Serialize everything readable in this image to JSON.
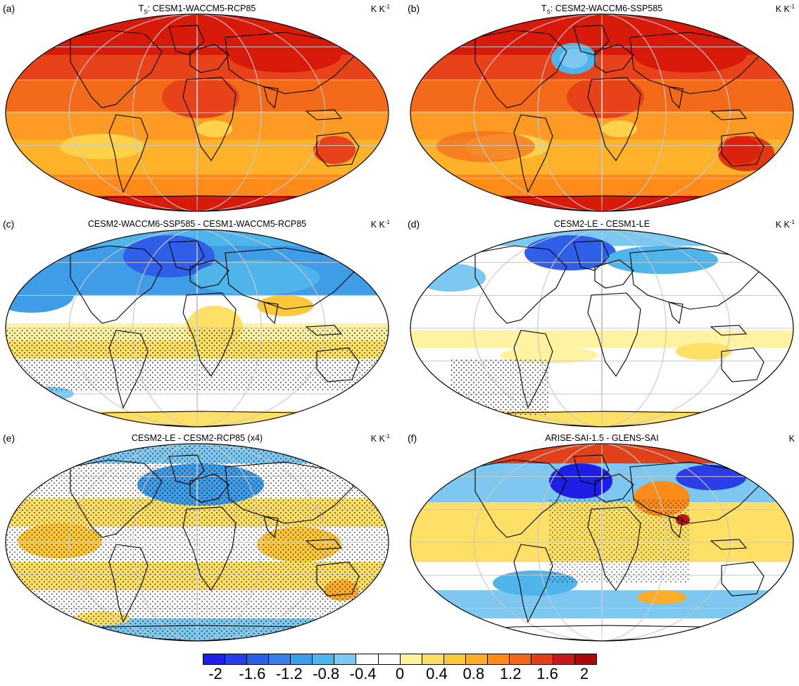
{
  "panels": [
    {
      "label": "(a)",
      "title_main": "T",
      "title_sub": "S",
      "title_rest": ": CESM1-WACCM5-RCP85",
      "units_base": "K K",
      "units_sup": "-1",
      "fill": "warm-strong"
    },
    {
      "label": "(b)",
      "title_main": "T",
      "title_sub": "S",
      "title_rest": ": CESM2-WACCM6-SSP585",
      "units_base": "K K",
      "units_sup": "-1",
      "fill": "warm-strong-natl"
    },
    {
      "label": "(c)",
      "title_main": "CESM2-WACCM6-SSP585 - CESM1-WACCM5-RCP85",
      "title_sub": "",
      "title_rest": "",
      "units_base": "K K",
      "units_sup": "-1",
      "fill": "diff-cool-north"
    },
    {
      "label": "(d)",
      "title_main": "CESM2-LE - CESM1-LE",
      "title_sub": "",
      "title_rest": "",
      "units_base": "K K",
      "units_sup": "-1",
      "fill": "diff-weak"
    },
    {
      "label": "(e)",
      "title_main": "CESM2-LE - CESM2-RCP85 (x4)",
      "title_sub": "",
      "title_rest": "",
      "units_base": "K K",
      "units_sup": "-1",
      "fill": "diff-stippled"
    },
    {
      "label": "(f)",
      "title_main": "ARISE-SAI-1.5 - GLENS-SAI",
      "title_sub": "",
      "title_rest": "",
      "units_base": "K",
      "units_sup": "",
      "fill": "diff-natl-cold"
    }
  ],
  "colorbar": {
    "colors": [
      "#1e1ee6",
      "#2a3ee8",
      "#2f5ee8",
      "#3a7ee6",
      "#3f9ce6",
      "#4fb4ea",
      "#7cc8f0",
      "#ffffff",
      "#ffffff",
      "#fff2a0",
      "#ffe066",
      "#ffc83a",
      "#ffad2a",
      "#ff8c1a",
      "#f2651a",
      "#e0401a",
      "#c81a1a",
      "#a80a0a"
    ],
    "tick_labels": [
      "-2",
      "-1.6",
      "-1.2",
      "-0.8",
      "-0.4",
      "0",
      "0.4",
      "0.8",
      "1.2",
      "1.6",
      "2"
    ]
  }
}
